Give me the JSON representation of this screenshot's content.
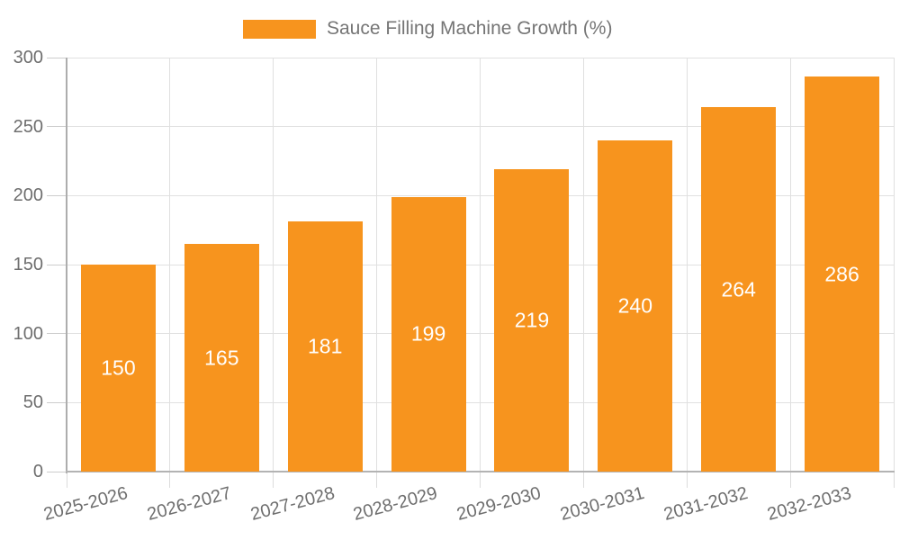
{
  "legend": {
    "label": "Sauce Filling Machine Growth (%)"
  },
  "chart_data": {
    "type": "bar",
    "title": "",
    "legend_entries": [
      "Sauce Filling Machine Growth (%)"
    ],
    "legend_position": "top-center",
    "categories": [
      "2025-2026",
      "2026-2027",
      "2027-2028",
      "2028-2029",
      "2029-2030",
      "2030-2031",
      "2031-2032",
      "2032-2033"
    ],
    "values": [
      150,
      165,
      181,
      199,
      219,
      240,
      264,
      286
    ],
    "value_labels": [
      "150",
      "165",
      "181",
      "199",
      "219",
      "240",
      "264",
      "286"
    ],
    "xlabel": "",
    "ylabel": "",
    "ylim": [
      0,
      300
    ],
    "yticks": [
      0,
      50,
      100,
      150,
      200,
      250,
      300
    ],
    "grid": true,
    "colors": {
      "bar": "#f7941e",
      "value_label": "#ffffff",
      "gridline": "#e0e0e0",
      "axis_line": "#b0b0b0",
      "tick_label": "#6e6e6e",
      "legend_text": "#757575",
      "background": "#ffffff"
    }
  }
}
